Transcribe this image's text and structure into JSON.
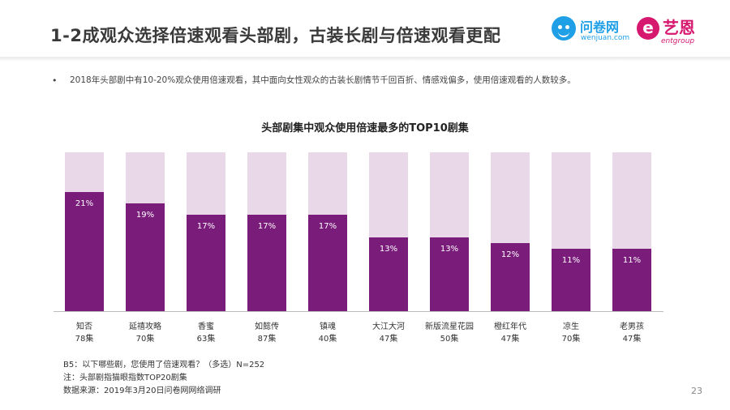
{
  "header": {
    "title": "1-2成观众选择倍速观看头部剧，古装长剧与倍速观看更配",
    "logo_wenjuan": {
      "name": "问卷网",
      "url": "wenjuan.com"
    },
    "logo_yien": {
      "name": "艺恩",
      "sub": "entgroup",
      "mark": "e"
    }
  },
  "bullet": {
    "symbol": "•",
    "text": "2018年头部剧中有10-20%观众使用倍速观看，其中面向女性观众的古装长剧情节千回百折、情感戏偏多，使用倍速观看的人数较多。"
  },
  "chart_data": {
    "type": "bar",
    "title": "头部剧集中观众使用倍速最多的TOP10剧集",
    "categories": [
      "知否",
      "延禧攻略",
      "香蜜",
      "如懿传",
      "镇魂",
      "大江大河",
      "新版流星花园",
      "橙红年代",
      "凉生",
      "老男孩"
    ],
    "episodes": [
      "78集",
      "70集",
      "63集",
      "87集",
      "40集",
      "47集",
      "50集",
      "47集",
      "70集",
      "47集"
    ],
    "values": [
      21,
      19,
      17,
      17,
      17,
      13,
      13,
      12,
      11,
      11
    ],
    "value_labels": [
      "21%",
      "19%",
      "17%",
      "17%",
      "17%",
      "13%",
      "13%",
      "12%",
      "11%",
      "11%"
    ],
    "ylim": [
      0,
      28
    ],
    "colors": {
      "bar": "#7a1c7a",
      "background": "#e8d8e8"
    }
  },
  "footer": {
    "question": "B5：以下哪些剧，您使用了倍速观看？（多选）N=252",
    "note": "注：头部剧指猫眼指数TOP20剧集",
    "source": "数据来源：2019年3月20日问卷网网络调研",
    "page": "23"
  }
}
